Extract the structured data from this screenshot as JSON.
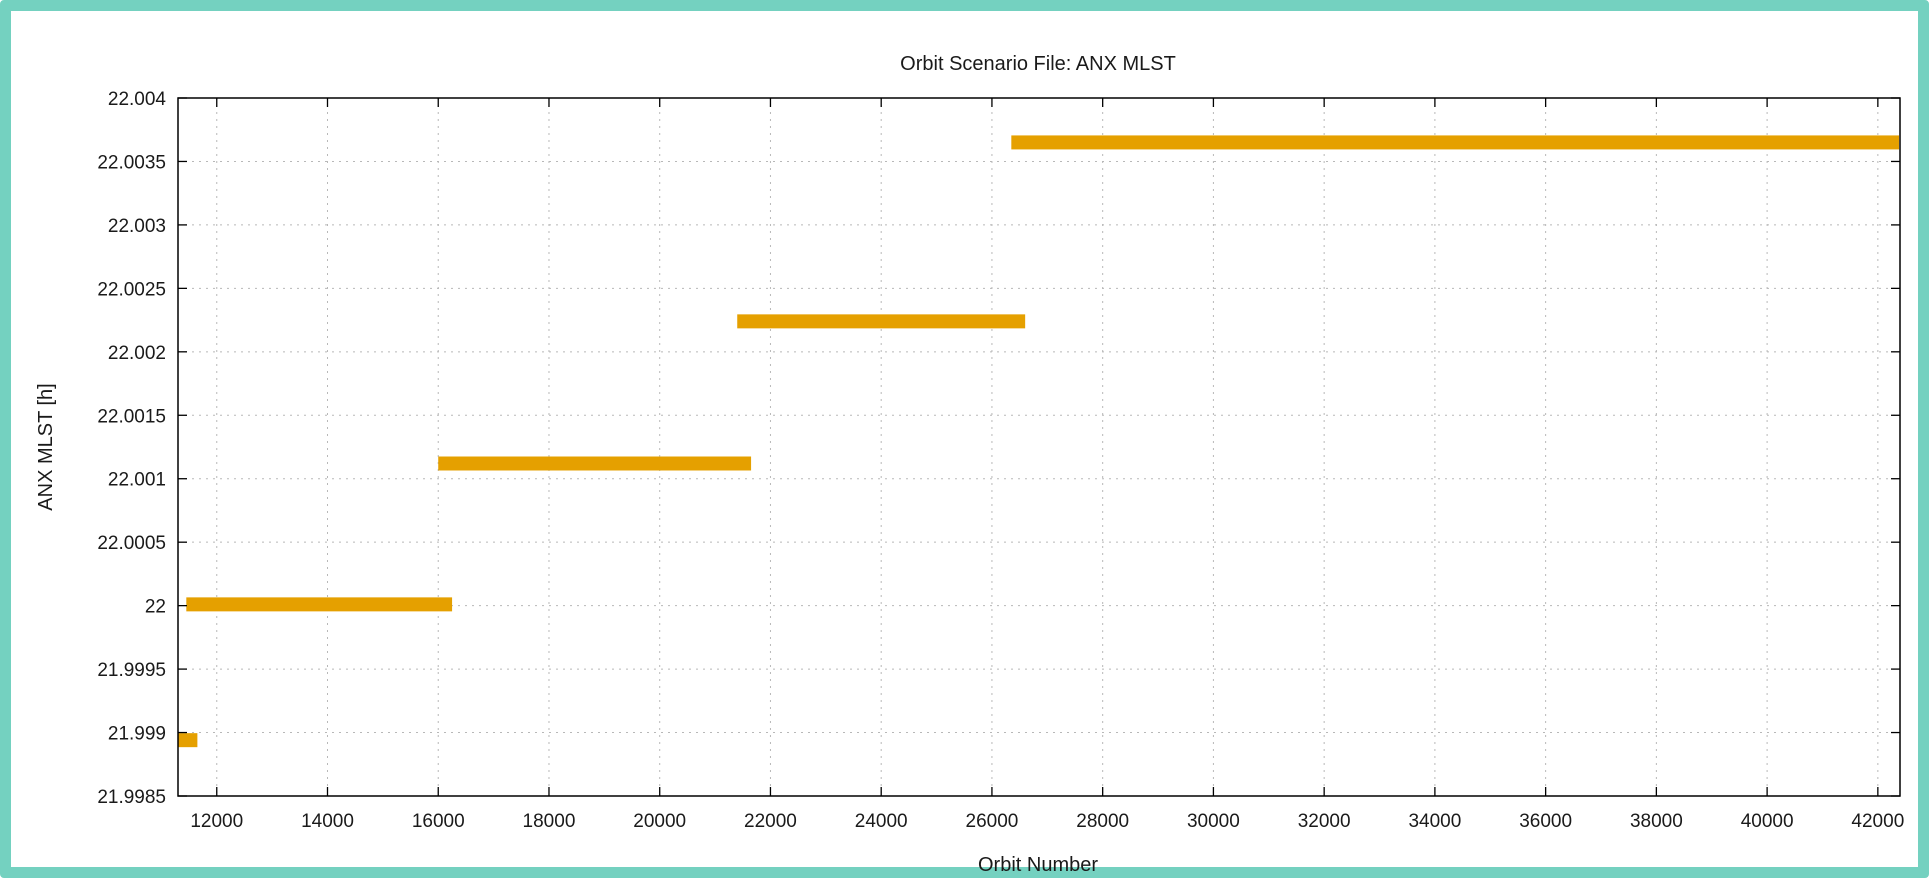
{
  "chart_data": {
    "type": "bar",
    "subtype": "horizontal-segments",
    "title": "Orbit Scenario File: ANX MLST",
    "xlabel": "Orbit Number",
    "ylabel": "ANX MLST [h]",
    "xlim": [
      11300,
      42400
    ],
    "ylim": [
      21.9985,
      22.004
    ],
    "grid": true,
    "legend": "none",
    "color": "#e5a000",
    "xticks": [
      12000,
      14000,
      16000,
      18000,
      20000,
      22000,
      24000,
      26000,
      28000,
      30000,
      32000,
      34000,
      36000,
      38000,
      40000,
      42000
    ],
    "xtick_labels": [
      "12000",
      "14000",
      "16000",
      "18000",
      "20000",
      "22000",
      "24000",
      "26000",
      "28000",
      "30000",
      "32000",
      "34000",
      "36000",
      "38000",
      "40000",
      "42000"
    ],
    "yticks": [
      21.9985,
      21.999,
      21.9995,
      22.0,
      22.0005,
      22.001,
      22.0015,
      22.002,
      22.0025,
      22.003,
      22.0035,
      22.004
    ],
    "ytick_labels": [
      "21.9985",
      "21.999",
      "21.9995",
      "22",
      "22.0005",
      "22.001",
      "22.0015",
      "22.002",
      "22.0025",
      "22.003",
      "22.0035",
      "22.004"
    ],
    "segments": [
      {
        "x_start": 11300,
        "x_end": 11650,
        "y": 21.99894
      },
      {
        "x_start": 11450,
        "x_end": 16250,
        "y": 22.00001
      },
      {
        "x_start": 16000,
        "x_end": 21650,
        "y": 22.00112
      },
      {
        "x_start": 21400,
        "x_end": 26600,
        "y": 22.00224
      },
      {
        "x_start": 26350,
        "x_end": 42400,
        "y": 22.00365
      }
    ]
  }
}
